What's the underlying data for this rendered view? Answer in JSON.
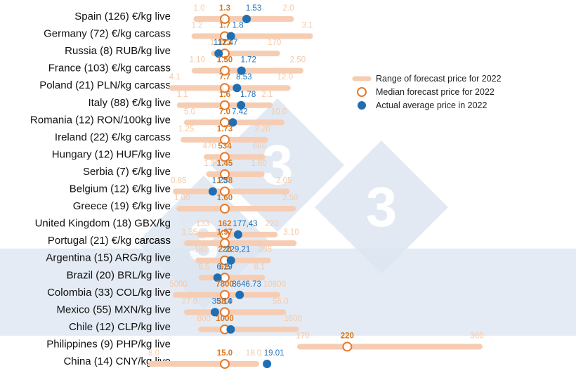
{
  "chart_data": {
    "type": "range_dot_plot",
    "colors": {
      "range": "#f6cdb3",
      "range_label": "#f7c9a6",
      "median": "#e8792b",
      "median_label": "#d9771d",
      "actual": "#1f6fb4",
      "actual_label": "#1f6fb4",
      "band": "#e4ebf4",
      "watermark": "#dde6f1"
    },
    "legend": {
      "position": "right",
      "items": [
        {
          "key": "range",
          "label": "Range of forecast price for 2022"
        },
        {
          "key": "median",
          "label": "Median forecast price for 2022"
        },
        {
          "key": "actual",
          "label": "Actual average price in 2022"
        }
      ]
    },
    "rows": [
      {
        "label": "Spain (126) €/kg live",
        "min": 1.0,
        "max": 2.0,
        "median": 1.3,
        "actual": 1.53,
        "min_text": "1.0",
        "max_text": "2.0",
        "median_text": "1.3",
        "actual_text": "1.53"
      },
      {
        "label": "Germany (72) €/kg carcass",
        "min": 1.2,
        "max": 3.1,
        "median": 1.7,
        "actual": 1.8,
        "min_text": "1.2",
        "max_text": "3.1",
        "median_text": "1.7",
        "actual_text": "1.8"
      },
      {
        "label": "Russia (8) RUB/kg live",
        "min": 113,
        "max": 170,
        "median": 123,
        "actual": 117.47,
        "min_text": "113",
        "max_text": "170",
        "median_text": "123",
        "actual_text": "117.47"
      },
      {
        "label": "France (103) €/kg carcass",
        "min": 1.1,
        "max": 2.5,
        "median": 1.5,
        "actual": 1.72,
        "min_text": "1.10",
        "max_text": "2.50",
        "median_text": "1.50",
        "actual_text": "1.72"
      },
      {
        "label": "Poland (21) PLN/kg carcass",
        "min": 4.1,
        "max": 12.0,
        "median": 7.7,
        "actual": 8.53,
        "min_text": "4.1",
        "max_text": "12.0",
        "median_text": "7.7",
        "actual_text": "8.53"
      },
      {
        "label": "Italy (88) €/kg live",
        "min": 1.1,
        "max": 2.1,
        "median": 1.6,
        "actual": 1.78,
        "min_text": "1.1",
        "max_text": "2.1",
        "median_text": "1.6",
        "actual_text": "1.78"
      },
      {
        "label": "Romania (12) RON/100kg live",
        "min": 5.0,
        "max": 10.0,
        "median": 7.0,
        "actual": 7.42,
        "min_text": "5.0",
        "max_text": "10.0",
        "median_text": "7.0",
        "actual_text": "7.42"
      },
      {
        "label": "Ireland (22) €/kg carcass",
        "min": 1.25,
        "max": 2.2,
        "median": 1.73,
        "actual": null,
        "min_text": "1.25",
        "max_text": "2.20",
        "median_text": "1.73",
        "actual_text": ""
      },
      {
        "label": "Hungary (12) HUF/kg live",
        "min": 470,
        "max": 666,
        "median": 534,
        "actual": null,
        "min_text": "470",
        "max_text": "666",
        "median_text": "534",
        "actual_text": ""
      },
      {
        "label": "Serbia (7) €/kg live",
        "min": 1.3,
        "max": 1.8,
        "median": 1.45,
        "actual": null,
        "min_text": "1.30",
        "max_text": "1.80",
        "median_text": "1.45",
        "actual_text": ""
      },
      {
        "label": "Belgium (12) €/kg live",
        "min": 0.85,
        "max": 2.05,
        "median": 1.38,
        "actual": 1.25,
        "min_text": "0.85",
        "max_text": "2.05",
        "median_text": "1.38",
        "actual_text": "1.25"
      },
      {
        "label": "Greece (19) €/kg live",
        "min": 1.0,
        "max": 2.5,
        "median": 1.6,
        "actual": null,
        "min_text": "1.00",
        "max_text": "2.50",
        "median_text": "1.60",
        "actual_text": ""
      },
      {
        "label": "United Kingdom (18) GBX/kg carcass",
        "label_lines": [
          "United Kingdom (18) GBX/kg",
          "carcass"
        ],
        "min": 133,
        "max": 220,
        "median": 162,
        "actual": 177.43,
        "min_text": "133",
        "max_text": "220",
        "median_text": "162",
        "actual_text": "177,43"
      },
      {
        "label": "Portugal (21) €/kg carcass",
        "min": 1.35,
        "max": 3.1,
        "median": 1.97,
        "actual": null,
        "min_text": "1.35",
        "max_text": "3.10",
        "median_text": "1.97",
        "actual_text": ""
      },
      {
        "label": "Argentina (15) ARG/kg live",
        "min": 180,
        "max": 285,
        "median": 220,
        "actual": 229.21,
        "min_text": "180",
        "max_text": "285",
        "median_text": "220",
        "actual_text": "229,21"
      },
      {
        "label": "Brazil (20) BRL/kg live",
        "min": 5.5,
        "max": 8.1,
        "median": 6.5,
        "actual": 6.19,
        "min_text": "5.5",
        "max_text": "8.1",
        "median_text": "6.5",
        "actual_text": "6.19"
      },
      {
        "label": "Colombia (33) COL/kg live",
        "min": 5000,
        "max": 10800,
        "median": 7800,
        "actual": 8646.73,
        "min_text": "5000",
        "max_text": "10800",
        "median_text": "7800",
        "actual_text": "8646.73"
      },
      {
        "label": "Mexico (55) MXN/kg live",
        "min": 27.0,
        "max": 55.0,
        "median": 38.0,
        "actual": 35.14,
        "min_text": "27.0",
        "max_text": "55.0",
        "median_text": "38.0",
        "actual_text": "35.14"
      },
      {
        "label": "Chile (12) CLP/kg live",
        "min": 800,
        "max": 1600,
        "median": 1000,
        "actual": 1050,
        "min_text": "800",
        "max_text": "1600",
        "median_text": "1000",
        "actual_text": ""
      },
      {
        "label": "Philippines (9) PHP/kg live",
        "min": 170,
        "max": 360,
        "median": 220,
        "actual": null,
        "min_text": "170",
        "max_text": "360",
        "median_text": "220",
        "actual_text": ""
      },
      {
        "label": "China (14) CNY/kg live",
        "min": 8.0,
        "max": 18.0,
        "median": 15.0,
        "actual": 19.01,
        "min_text": "8.0",
        "max_text": "18.0",
        "median_text": "15.0",
        "actual_text": "19.01"
      }
    ],
    "highlight_band": {
      "from_row": 14,
      "to_row": 18
    }
  }
}
